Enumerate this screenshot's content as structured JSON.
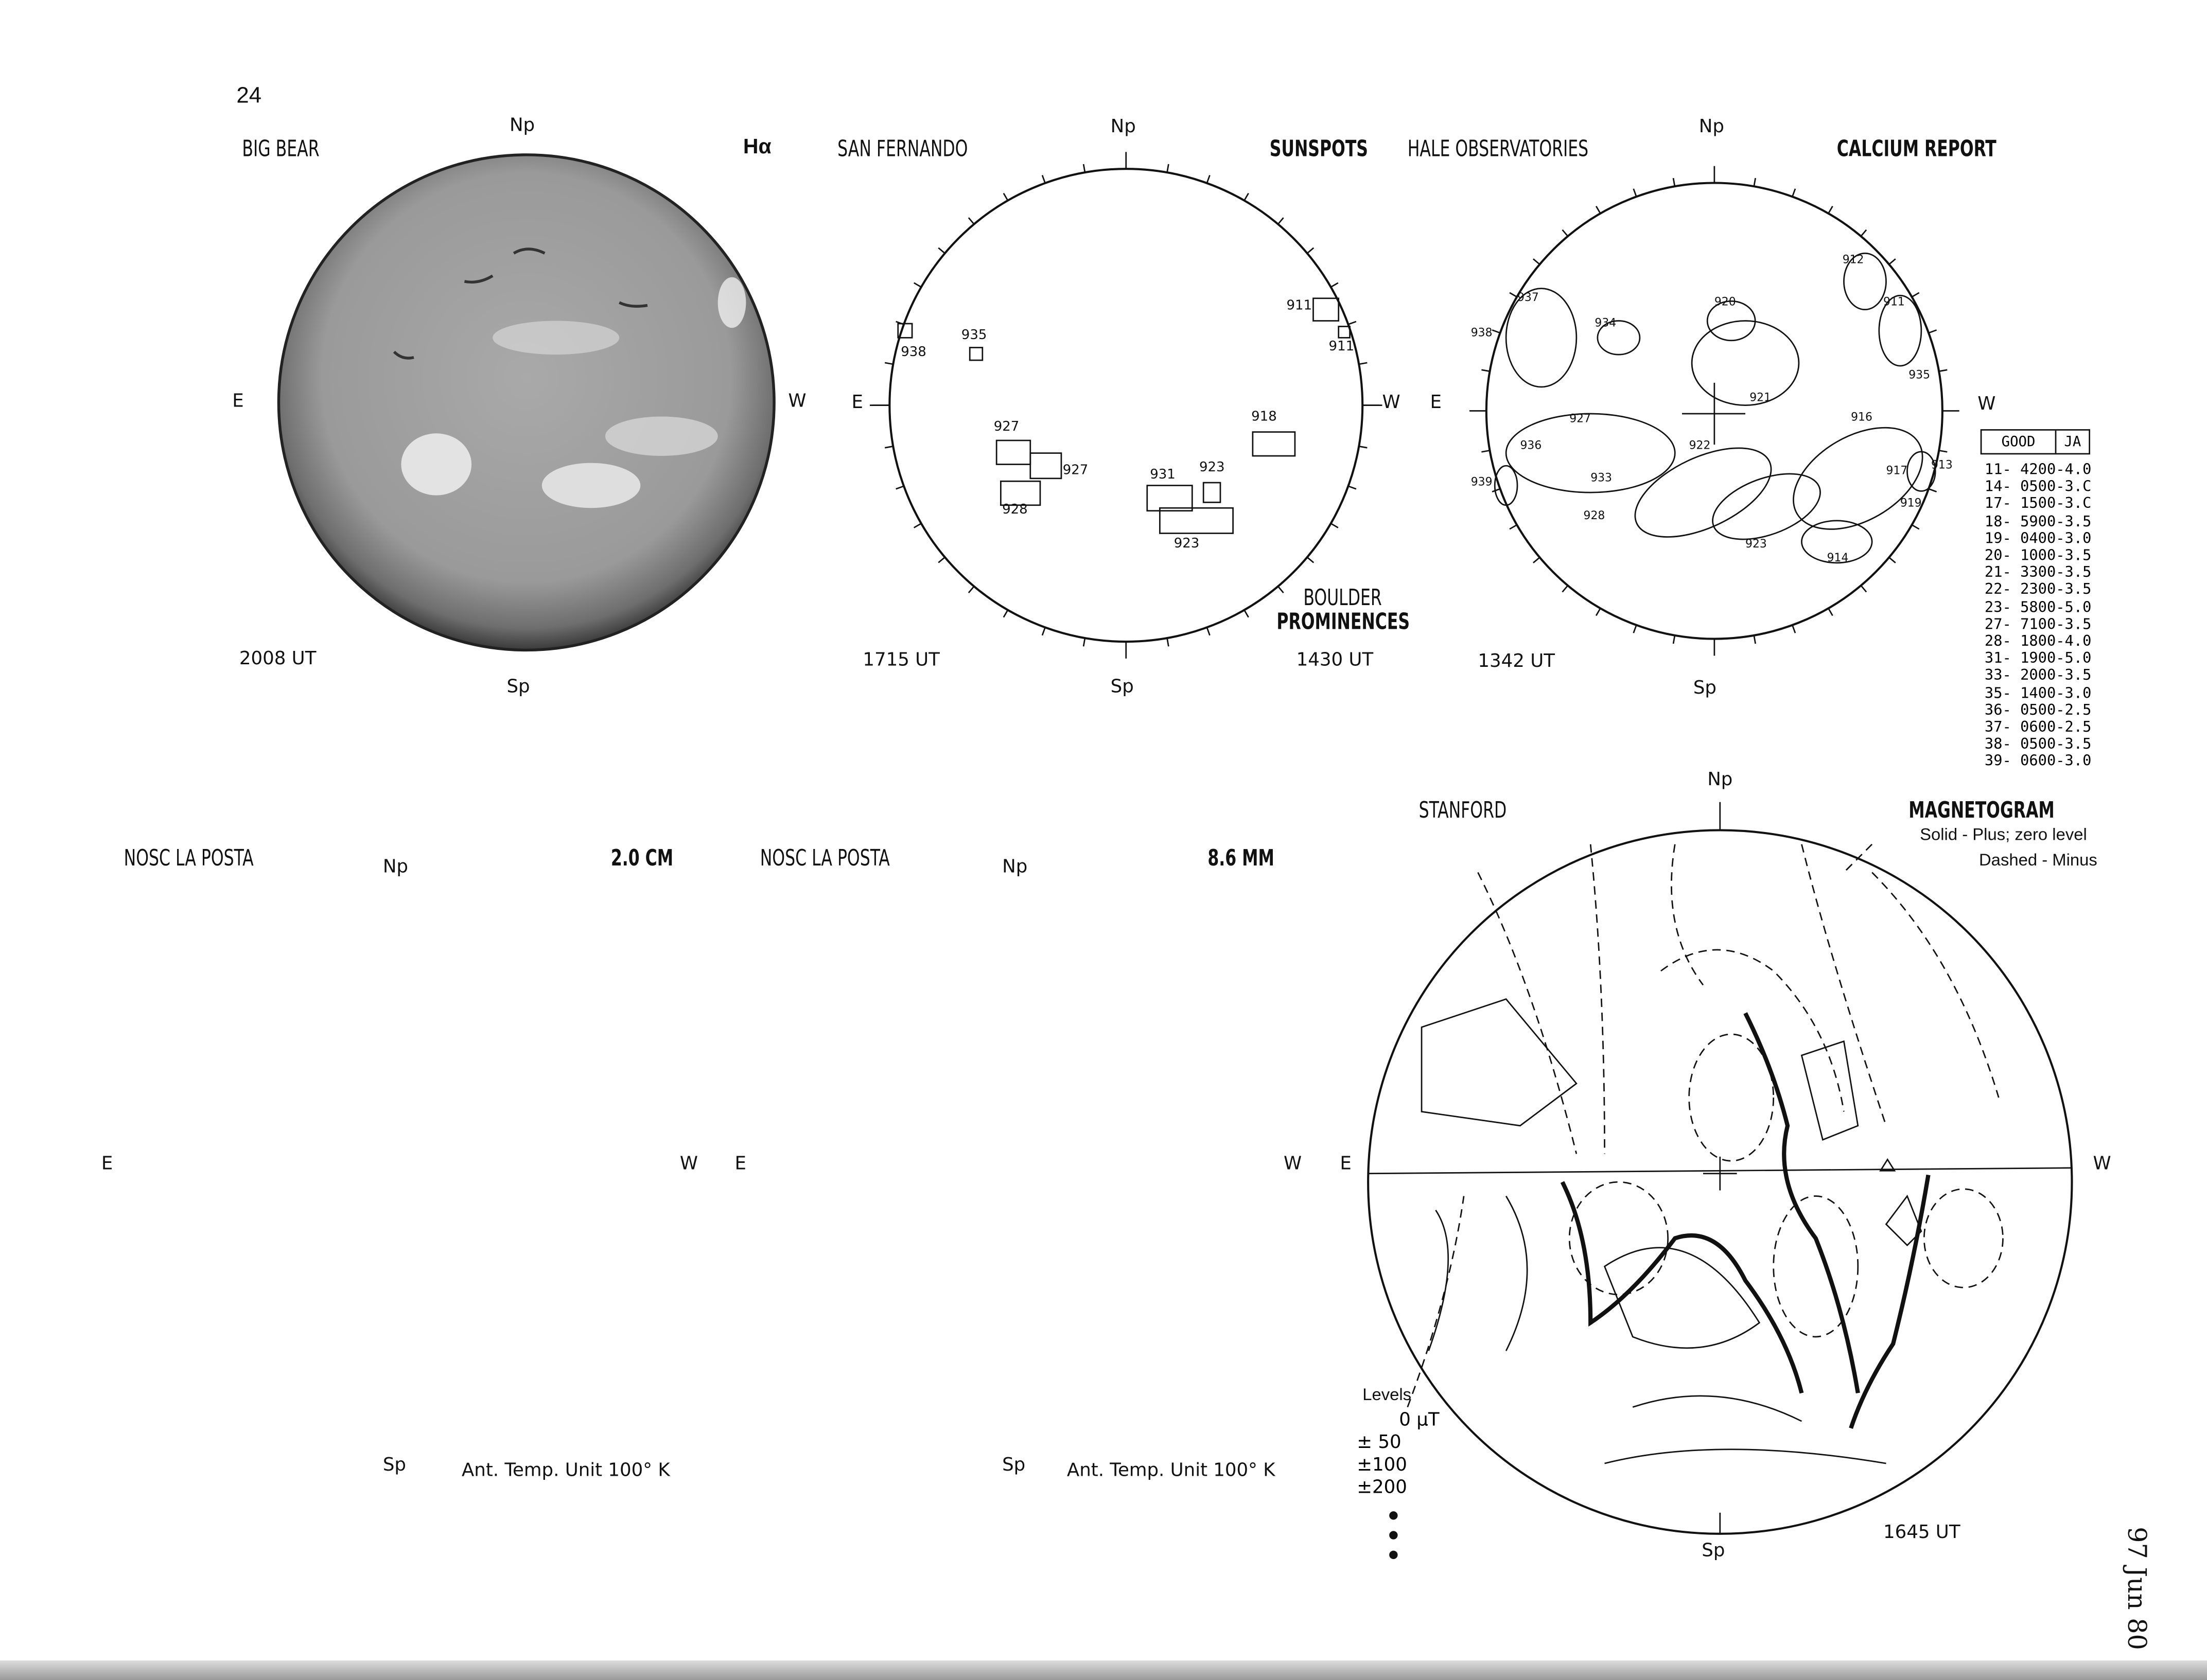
{
  "page_number": "24",
  "footer_date": "97 Jun 80",
  "big_bear": {
    "title": "BIG BEAR",
    "filter": "Hα",
    "time": "2008 UT",
    "n": "Np",
    "s": "Sp",
    "e": "E",
    "w": "W"
  },
  "san_fernando": {
    "title": "SAN FERNANDO",
    "subtitle": "SUNSPOTS",
    "time": "1715 UT",
    "n": "Np",
    "s": "Sp",
    "e": "E",
    "w": "W",
    "regions": [
      "911",
      "911",
      "938",
      "935",
      "927",
      "927",
      "928",
      "918",
      "931",
      "923",
      "923"
    ]
  },
  "boulder": {
    "title": "BOULDER",
    "subtitle": "PROMINENCES",
    "time": "1430 UT"
  },
  "hale": {
    "title": "HALE OBSERVATORIES",
    "subtitle": "CALCIUM REPORT",
    "time": "1342 UT",
    "n": "Np",
    "s": "Sp",
    "e": "E",
    "w": "W",
    "regions": [
      "912",
      "911",
      "937",
      "938",
      "934",
      "920",
      "921",
      "935",
      "927",
      "936",
      "939",
      "922",
      "933",
      "928",
      "923",
      "916",
      "917",
      "913",
      "919",
      "914"
    ]
  },
  "calcium_table": {
    "headers": [
      "GOOD",
      "JA"
    ],
    "rows": [
      "11- 4200-4.0",
      "14- 0500-3.C",
      "17- 1500-3.C",
      "18- 5900-3.5",
      "19- 0400-3.0",
      "20- 1000-3.5",
      "21- 3300-3.5",
      "22- 2300-3.5",
      "23- 5800-5.0",
      "27- 7100-3.5",
      "28- 1800-4.0",
      "31- 1900-5.0",
      "33- 2000-3.5",
      "35- 1400-3.0",
      "36- 0500-2.5",
      "37- 0600-2.5",
      "38- 0500-3.5",
      "39- 0600-3.0"
    ]
  },
  "la_posta_1": {
    "title": "NOSC LA POSTA",
    "band": "2.0 CM",
    "n": "Np",
    "s": "Sp",
    "e": "E",
    "w": "W",
    "unit": "Ant. Temp. Unit 100° K"
  },
  "la_posta_2": {
    "title": "NOSC LA POSTA",
    "band": "8.6 MM",
    "n": "Np",
    "s": "Sp",
    "e": "E",
    "w": "W",
    "unit": "Ant. Temp. Unit 100° K"
  },
  "stanford": {
    "title": "STANFORD",
    "subtitle": "MAGNETOGRAM",
    "legend1": "Solid - Plus; zero level",
    "legend2": "Dashed - Minus",
    "time": "1645 UT",
    "n": "Np",
    "s": "Sp",
    "e": "E",
    "w": "W",
    "levels_title": "Levels",
    "levels": [
      "0 μT",
      "± 50",
      "±100",
      "±200"
    ]
  }
}
